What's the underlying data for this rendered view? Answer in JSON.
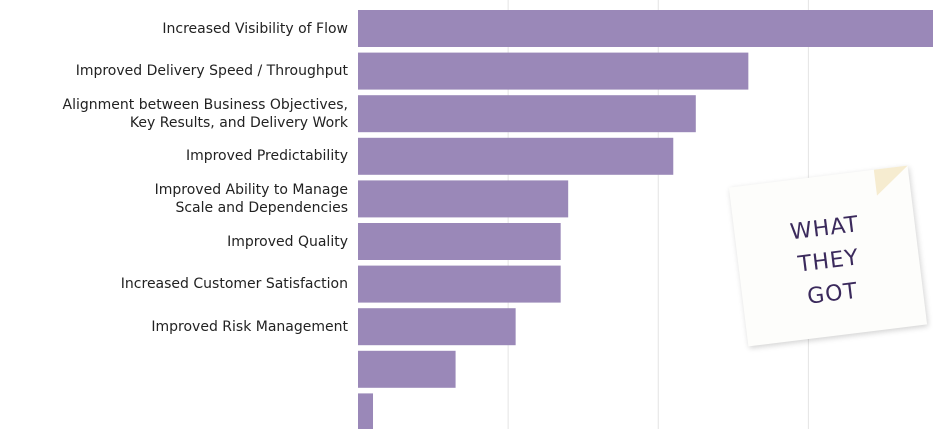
{
  "chart_data": {
    "type": "bar",
    "orientation": "horizontal",
    "categories": [
      "Increased Visibility of Flow",
      "Improved Delivery Speed / Throughput",
      "Alignment between Business Objectives,\nKey Results, and Delivery Work",
      "Improved  Predictability",
      "Improved Ability to Manage\nScale and Dependencies",
      "Improved Quality",
      "Increased Customer Satisfaction",
      "Improved Risk Management",
      null,
      null
    ],
    "values": [
      38.3,
      26,
      22.5,
      21,
      14,
      13.5,
      13.5,
      10.5,
      6.5,
      1
    ],
    "color": "#9a88b8",
    "xlim": [
      0,
      38.3
    ],
    "xticks": [
      0,
      10,
      20,
      30
    ],
    "grid": true,
    "annotation": "WHAT\nTHEY\nGOT"
  }
}
